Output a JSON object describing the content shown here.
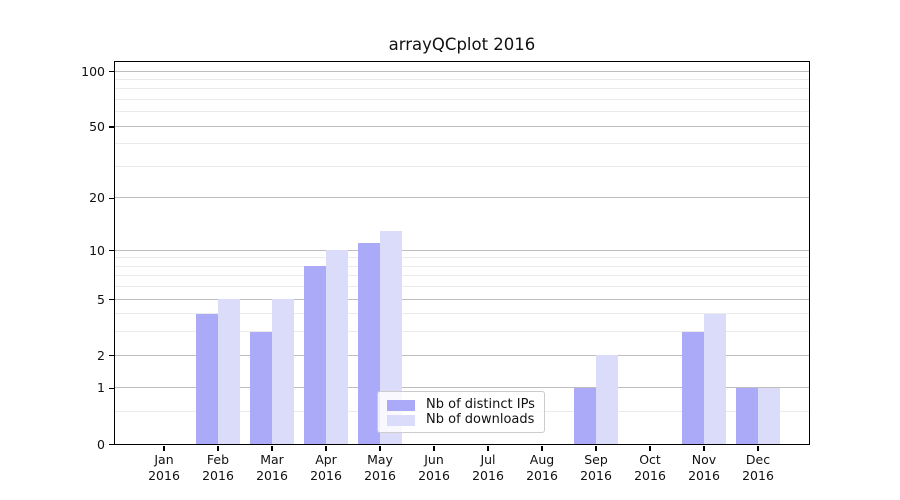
{
  "title": "arrayQCplot 2016",
  "chart_data": {
    "type": "bar",
    "title": "arrayQCplot 2016",
    "categories": [
      "Jan 2016",
      "Feb 2016",
      "Mar 2016",
      "Apr 2016",
      "May 2016",
      "Jun 2016",
      "Jul 2016",
      "Aug 2016",
      "Sep 2016",
      "Oct 2016",
      "Nov 2016",
      "Dec 2016"
    ],
    "series": [
      {
        "name": "Nb of distinct IPs",
        "color": "#aaaaf8",
        "values": [
          0,
          4,
          3,
          8,
          11,
          0,
          0,
          0,
          1,
          0,
          3,
          1
        ]
      },
      {
        "name": "Nb of downloads",
        "color": "#dbdbfa",
        "values": [
          0,
          5,
          5,
          10,
          13,
          0,
          0,
          0,
          2,
          0,
          4,
          1
        ]
      }
    ],
    "xlabel": "",
    "ylabel": "",
    "yscale": "log1p",
    "ylim": [
      0,
      112
    ],
    "yticks": [
      0,
      1,
      2,
      5,
      10,
      20,
      50,
      100
    ],
    "yticks_minor": [
      0.5,
      3,
      4,
      6,
      7,
      8,
      9,
      30,
      40,
      60,
      70,
      80,
      90
    ],
    "grid": true,
    "legend_position": "lower center",
    "grid_color_major": "#bdbdbd",
    "grid_color_minor": "#ebebeb",
    "spine_color": "#000000",
    "text_color": "#111111"
  }
}
